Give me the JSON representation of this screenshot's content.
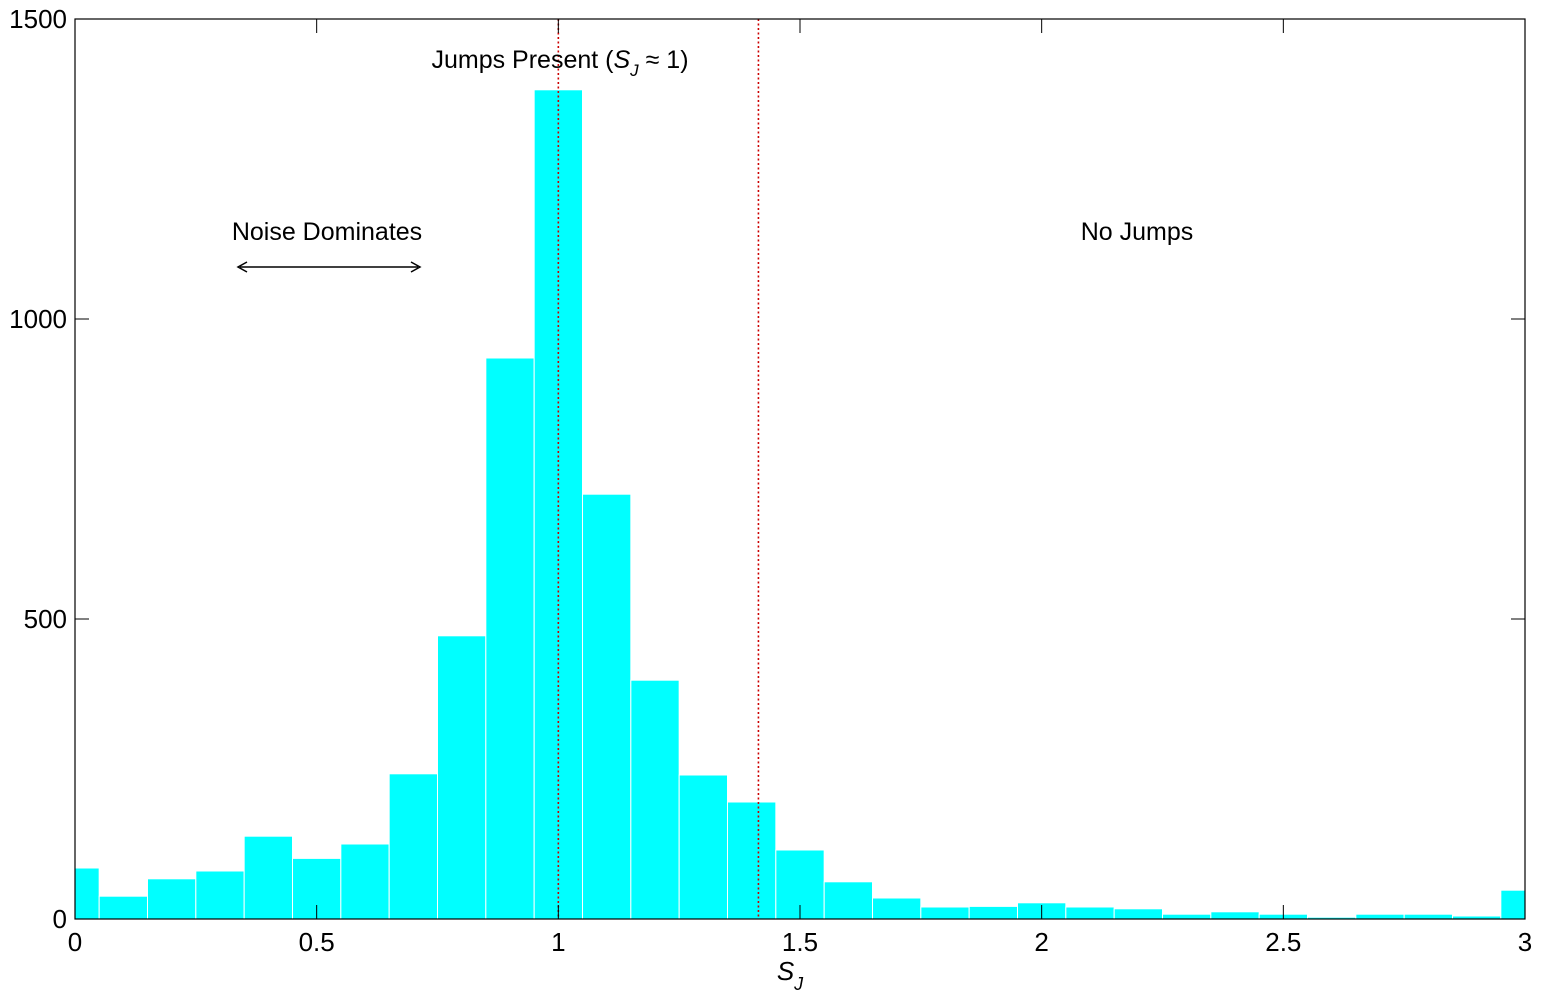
{
  "chart_data": {
    "type": "bar",
    "title": "",
    "xlabel": "S",
    "xlabel_sub": "J",
    "ylabel": "",
    "xlim": [
      0,
      3
    ],
    "ylim": [
      0,
      1500
    ],
    "grid": false,
    "bar_color": "#00ffff",
    "xticks": [
      "0",
      "0.5",
      "1",
      "1.5",
      "2",
      "2.5",
      "3"
    ],
    "yticks": [
      "0",
      "500",
      "1000",
      "1500"
    ],
    "bin_width": 0.1,
    "x": [
      0.0,
      0.1,
      0.2,
      0.3,
      0.4,
      0.5,
      0.6,
      0.7,
      0.8,
      0.9,
      1.0,
      1.1,
      1.2,
      1.3,
      1.4,
      1.5,
      1.6,
      1.7,
      1.8,
      1.9,
      2.0,
      2.1,
      2.2,
      2.3,
      2.4,
      2.5,
      2.6,
      2.7,
      2.8,
      2.9,
      3.0
    ],
    "values": [
      85,
      38,
      67,
      80,
      138,
      101,
      125,
      242,
      472,
      935,
      1382,
      708,
      398,
      240,
      195,
      115,
      62,
      35,
      20,
      21,
      27,
      20,
      17,
      8,
      12,
      8,
      3,
      8,
      8,
      5,
      48
    ],
    "reference_lines": [
      {
        "x": 1.0,
        "color": "#cc0000",
        "style": "dotted"
      },
      {
        "x": 1.414,
        "color": "#cc0000",
        "style": "dotted"
      }
    ],
    "annotations": {
      "jumps_prefix": "Jumps Present (",
      "jumps_S": "S",
      "jumps_sub": "J",
      "jumps_suffix": " ≈ 1)",
      "noise": "Noise Dominates",
      "no_jumps": "No Jumps"
    }
  }
}
